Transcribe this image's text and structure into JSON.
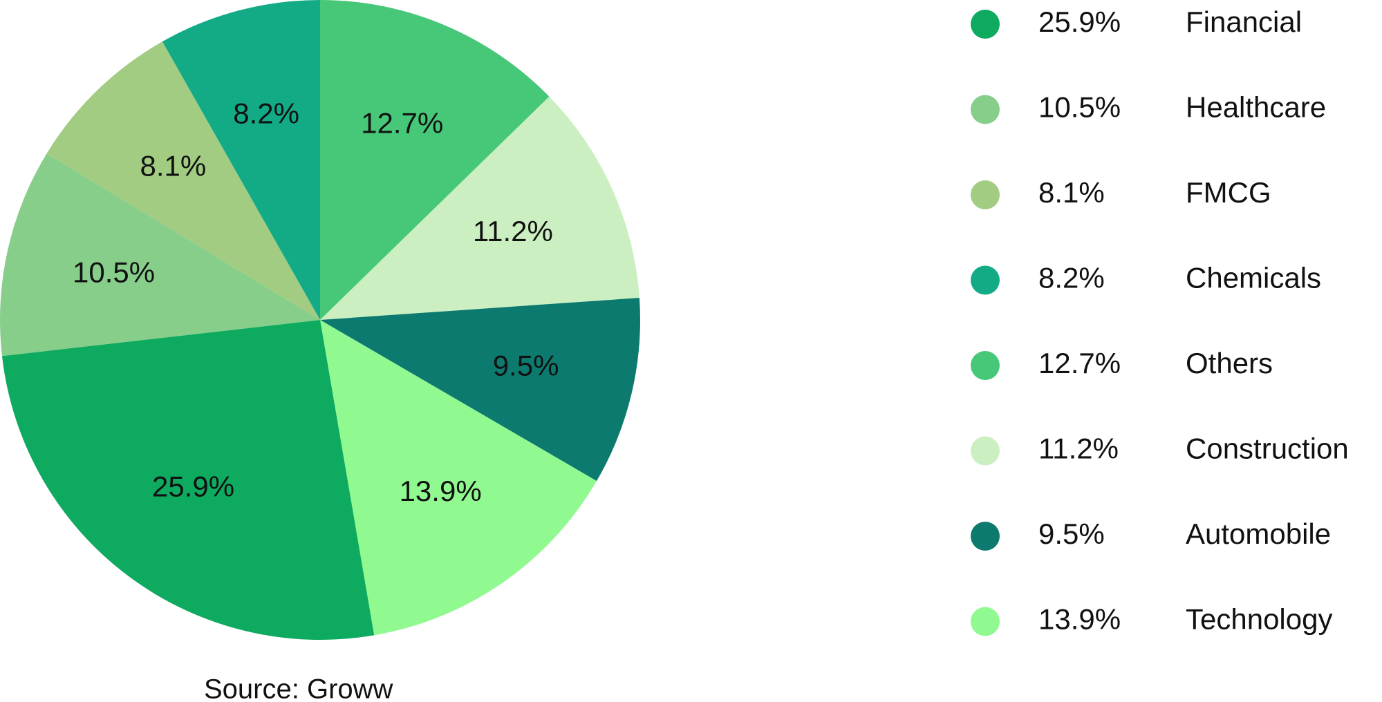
{
  "chart_data": {
    "type": "pie",
    "slices": [
      {
        "label": "Others",
        "value": 12.7,
        "display": "12.7%",
        "color": "#47C878"
      },
      {
        "label": "Construction",
        "value": 11.2,
        "display": "11.2%",
        "color": "#CCEFC2"
      },
      {
        "label": "Automobile",
        "value": 9.5,
        "display": "9.5%",
        "color": "#0D7A6F"
      },
      {
        "label": "Technology",
        "value": 13.9,
        "display": "13.9%",
        "color": "#90F990"
      },
      {
        "label": "Financial",
        "value": 25.9,
        "display": "25.9%",
        "color": "#0DAA5F"
      },
      {
        "label": "Healthcare",
        "value": 10.5,
        "display": "10.5%",
        "color": "#86CE8A"
      },
      {
        "label": "FMCG",
        "value": 8.1,
        "display": "8.1%",
        "color": "#A1CC82"
      },
      {
        "label": "Chemicals",
        "value": 8.2,
        "display": "8.2%",
        "color": "#13AA86"
      }
    ],
    "legend": [
      {
        "value": "25.9%",
        "name": "Financial",
        "color": "#0DAA5F"
      },
      {
        "value": "10.5%",
        "name": "Healthcare",
        "color": "#86CE8A"
      },
      {
        "value": "8.1%",
        "name": "FMCG",
        "color": "#A1CC82"
      },
      {
        "value": "8.2%",
        "name": "Chemicals",
        "color": "#13AA86"
      },
      {
        "value": "12.7%",
        "name": "Others",
        "color": "#47C878"
      },
      {
        "value": "11.2%",
        "name": "Construction",
        "color": "#CCEFC2"
      },
      {
        "value": "9.5%",
        "name": "Automobile",
        "color": "#0D7A6F"
      },
      {
        "value": "13.9%",
        "name": "Technology",
        "color": "#90F990"
      }
    ],
    "legend_position": "right",
    "source": "Source: Groww"
  }
}
